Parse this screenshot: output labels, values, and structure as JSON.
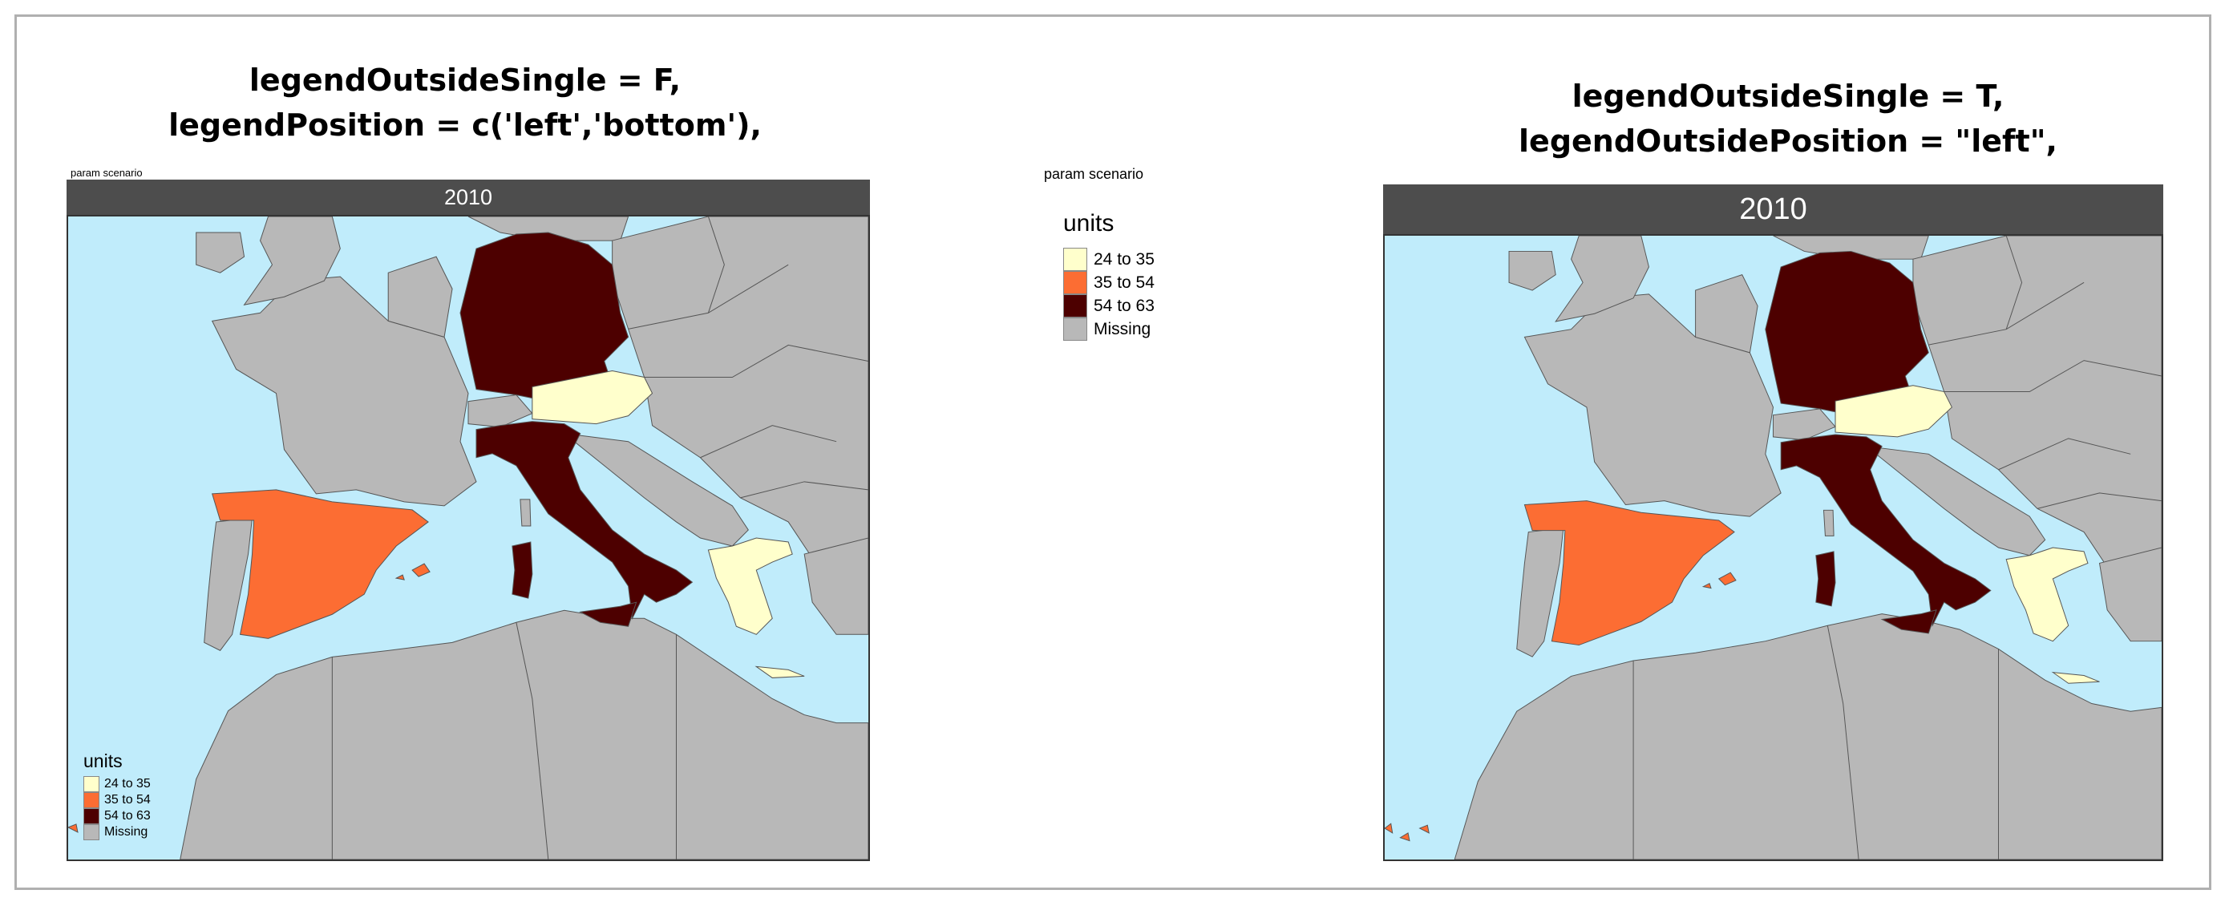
{
  "left_title": {
    "line1": "legendOutsideSingle = F,",
    "line2": "legendPosition = c('left','bottom'),"
  },
  "right_title": {
    "line1": "legendOutsideSingle = T,",
    "line2": "legendOutsidePosition = \"left\","
  },
  "param_label": "param scenario",
  "panel_year": "2010",
  "legend": {
    "title": "units",
    "items": [
      {
        "label": "24 to 35",
        "color": "#FFFFCC"
      },
      {
        "label": "35 to 54",
        "color": "#FC6D33"
      },
      {
        "label": "54 to 63",
        "color": "#4D0000"
      },
      {
        "label": "Missing",
        "color": "#B8B8B8"
      }
    ]
  },
  "colors": {
    "sea": "#C0ECFB",
    "land_missing": "#B8B8B8",
    "strip": "#4D4D4D"
  },
  "map_data": {
    "regions": [
      {
        "name": "Germany",
        "class": "54 to 63"
      },
      {
        "name": "Italy",
        "class": "54 to 63"
      },
      {
        "name": "Austria",
        "class": "24 to 35"
      },
      {
        "name": "Greece",
        "class": "24 to 35"
      },
      {
        "name": "Spain",
        "class": "35 to 54"
      }
    ]
  }
}
